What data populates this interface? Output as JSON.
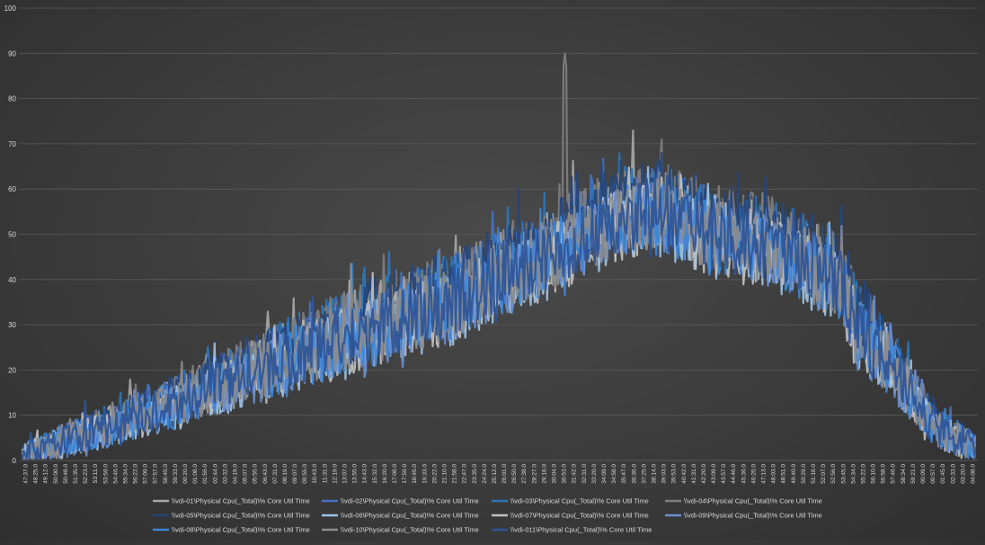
{
  "colors": {
    "background": "#3f3f3f",
    "grid": "#5a5a5a",
    "tick_text": "#d9d9d9"
  },
  "chart_data": {
    "type": "line",
    "title": "",
    "xlabel": "",
    "ylabel": "",
    "ylim": [
      0,
      100
    ],
    "yticks": [
      0,
      10,
      20,
      30,
      40,
      50,
      60,
      70,
      80,
      90,
      100
    ],
    "grid": "horizontal",
    "legend_position": "bottom",
    "x_tick_labels": [
      "47:37.0",
      "48:25.0",
      "49:12.0",
      "50:00.0",
      "50:48.0",
      "51:35.0",
      "52:23.0",
      "53:11.0",
      "53:59.0",
      "54:46.0",
      "55:34.0",
      "56:22.0",
      "57:09.0",
      "57:57.0",
      "58:45.0",
      "59:33.0",
      "00:20.0",
      "01:08.0",
      "01:56.0",
      "02:44.0",
      "03:32.0",
      "04:19.0",
      "05:07.0",
      "05:55.0",
      "06:43.0",
      "07:31.0",
      "08:19.0",
      "09:07.0",
      "09:55.0",
      "10:43.0",
      "11:31.0",
      "12:19.0",
      "13:07.0",
      "13:55.0",
      "14:43.0",
      "15:32.0",
      "16:20.0",
      "17:08.0",
      "17:56.0",
      "18:45.0",
      "19:33.0",
      "20:22.0",
      "21:10.0",
      "21:58.0",
      "22:47.0",
      "23:35.0",
      "24:24.0",
      "25:12.0",
      "26:01.0",
      "26:50.0",
      "27:38.0",
      "28:27.0",
      "29:16.0",
      "30:04.0",
      "30:53.0",
      "31:42.0",
      "32:31.0",
      "33:20.0",
      "34:09.0",
      "34:58.0",
      "35:47.0",
      "36:36.0",
      "37:25.0",
      "38:14.0",
      "39:03.0",
      "39:53.0",
      "40:42.0",
      "41:31.0",
      "42:20.0",
      "43:09.0",
      "43:57.0",
      "44:46.0",
      "45:36.0",
      "46:25.0",
      "47:13.0",
      "48:03.0",
      "48:51.0",
      "49:40.0",
      "50:29.0",
      "51:18.0",
      "52:07.0",
      "52:56.0",
      "53:45.0",
      "54:34.0",
      "55:22.0",
      "56:10.0",
      "56:58.0",
      "57:46.0",
      "58:34.0",
      "59:21.0",
      "00:09.0",
      "00:57.0",
      "01:45.0",
      "02:33.0",
      "03:20.0",
      "04:08.0"
    ],
    "envelope": {
      "x": [
        0,
        0.04,
        0.15,
        0.3,
        0.45,
        0.55,
        0.62,
        0.665,
        0.72,
        0.8,
        0.86,
        0.875,
        0.91,
        0.96,
        1.0
      ],
      "y": [
        1.0,
        4.0,
        12.0,
        25.0,
        36.0,
        46.0,
        54.0,
        56.0,
        51.0,
        47.0,
        40.0,
        30.0,
        22.0,
        7.0,
        3.0
      ],
      "sample_count": 700,
      "noise_amplitude": 8.0,
      "peak_index": 398,
      "peak_value": 90
    },
    "series": [
      {
        "name": "\\\\vdi-01\\Physical Cpu(_Total)\\% Core Util Time",
        "color": "#a6a6a6"
      },
      {
        "name": "\\\\vdi-02\\Physical Cpu(_Total)\\% Core Util Time",
        "color": "#4472c4"
      },
      {
        "name": "\\\\vdi-03\\Physical Cpu(_Total)\\% Core Util Time",
        "color": "#2e75b6"
      },
      {
        "name": "\\\\vdi-04\\Physical Cpu(_Total)\\% Core Util Time",
        "color": "#7f7f7f"
      },
      {
        "name": "\\\\vdi-05\\Physical Cpu(_Total)\\% Core Util Time",
        "color": "#264478"
      },
      {
        "name": "\\\\vdi-06\\Physical Cpu(_Total)\\% Core Util Time",
        "color": "#9dc3e6"
      },
      {
        "name": "\\\\vdi-07\\Physical Cpu(_Total)\\% Core Util Time",
        "color": "#bfbfbf"
      },
      {
        "name": "\\\\vdi-09\\Physical Cpu(_Total)\\% Core Util Time",
        "color": "#698ed0"
      },
      {
        "name": "\\\\vdi-08\\Physical Cpu(_Total)\\% Core Util Time",
        "color": "#3d85d6"
      },
      {
        "name": "\\\\vdi-10\\Physical Cpu(_Total)\\% Core Util Time",
        "color": "#8c8c8c"
      },
      {
        "name": "\\\\vdi-011\\Physical Cpu(_Total)\\% Core Util Time",
        "color": "#2f5597"
      }
    ]
  }
}
